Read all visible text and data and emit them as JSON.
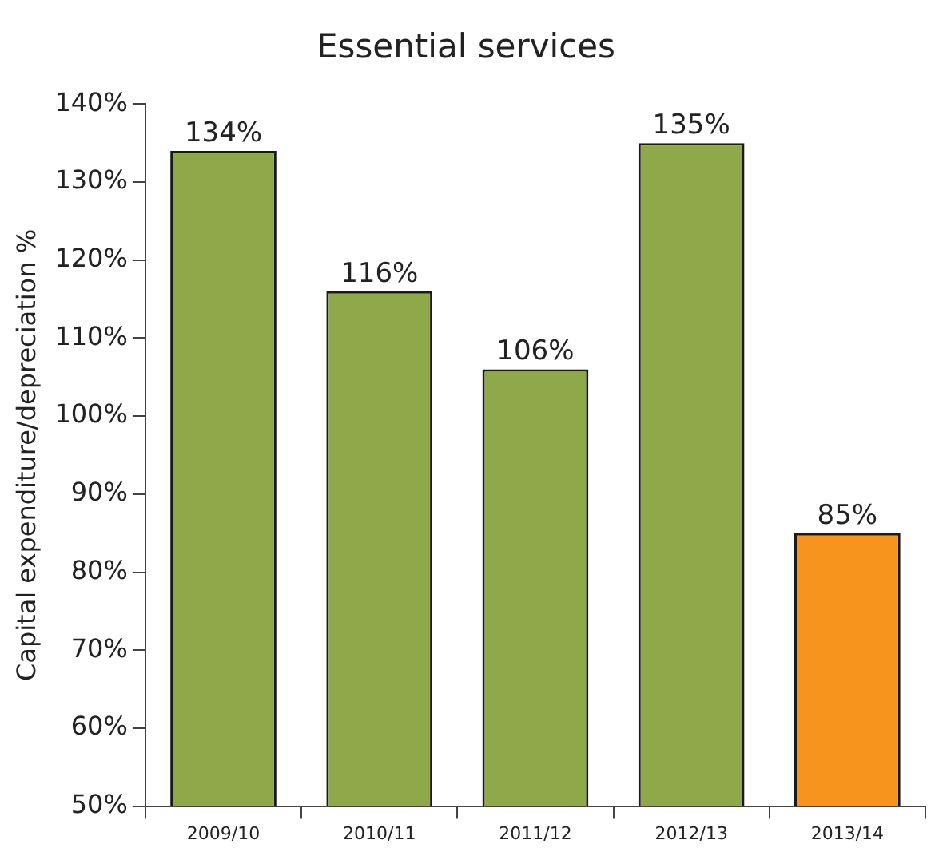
{
  "chart_data": {
    "type": "bar",
    "title": "Essential services",
    "ylabel": "Capital expenditure/depreciation %",
    "categories": [
      "2009/10",
      "2010/11",
      "2011/12",
      "2012/13",
      "2013/14"
    ],
    "values": [
      134,
      116,
      106,
      135,
      85
    ],
    "colors": [
      "#8fa84a",
      "#8fa84a",
      "#8fa84a",
      "#8fa84a",
      "#f7941d"
    ],
    "value_labels": [
      "134%",
      "116%",
      "106%",
      "135%",
      "85%"
    ],
    "ylim": [
      50,
      140
    ],
    "yticks": [
      {
        "value": 50,
        "label": "50%"
      },
      {
        "value": 60,
        "label": "60%"
      },
      {
        "value": 70,
        "label": "70%"
      },
      {
        "value": 80,
        "label": "80%"
      },
      {
        "value": 90,
        "label": "90%"
      },
      {
        "value": 100,
        "label": "100%"
      },
      {
        "value": 110,
        "label": "110%"
      },
      {
        "value": 120,
        "label": "120%"
      },
      {
        "value": 130,
        "label": "130%"
      },
      {
        "value": 140,
        "label": "140%"
      }
    ],
    "grid": false,
    "legend": false
  }
}
